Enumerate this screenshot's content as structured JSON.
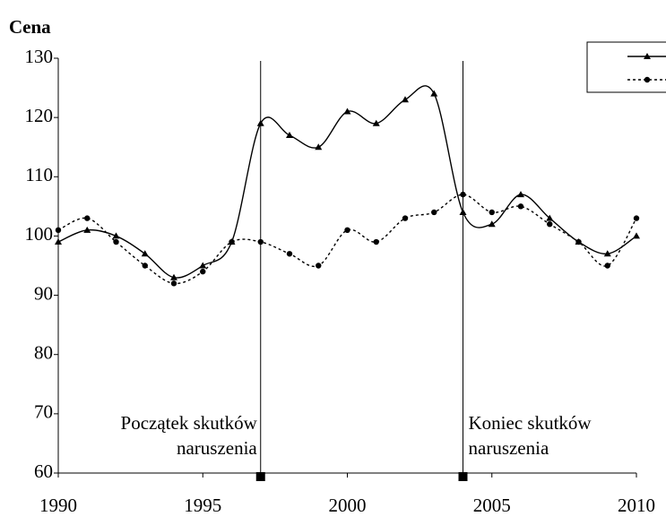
{
  "chart_data": {
    "type": "line",
    "title": "Cena",
    "x": [
      1990,
      1991,
      1992,
      1993,
      1994,
      1995,
      1996,
      1997,
      1998,
      1999,
      2000,
      2001,
      2002,
      2003,
      2004,
      2005,
      2006,
      2007,
      2008,
      2009,
      2010
    ],
    "series": [
      {
        "color": "#000000",
        "line_style": "solid",
        "marker": "triangle",
        "values": [
          99,
          101,
          100,
          97,
          93,
          95,
          99,
          119,
          117,
          115,
          121,
          119,
          123,
          124,
          104,
          102,
          107,
          103,
          99,
          97,
          100
        ]
      },
      {
        "color": "#000000",
        "line_style": "dotted",
        "marker": "circle",
        "values": [
          101,
          103,
          99,
          95,
          92,
          94,
          99,
          99,
          97,
          95,
          101,
          99,
          103,
          104,
          107,
          104,
          105,
          102,
          99,
          95,
          103
        ]
      }
    ],
    "xlim": [
      1990,
      2010
    ],
    "xticks": [
      1990,
      1995,
      2000,
      2005,
      2010
    ],
    "ylim": [
      60,
      130
    ],
    "yticks": [
      60,
      70,
      80,
      90,
      100,
      110,
      120,
      130
    ],
    "grid": false,
    "legend": "upper right",
    "annotations": [
      {
        "x": 1997,
        "lines": [
          "Początek skutków",
          "naruszenia"
        ],
        "align": "right"
      },
      {
        "x": 2004,
        "lines": [
          "Koniec skutków",
          "naruszenia"
        ],
        "align": "left"
      }
    ]
  }
}
